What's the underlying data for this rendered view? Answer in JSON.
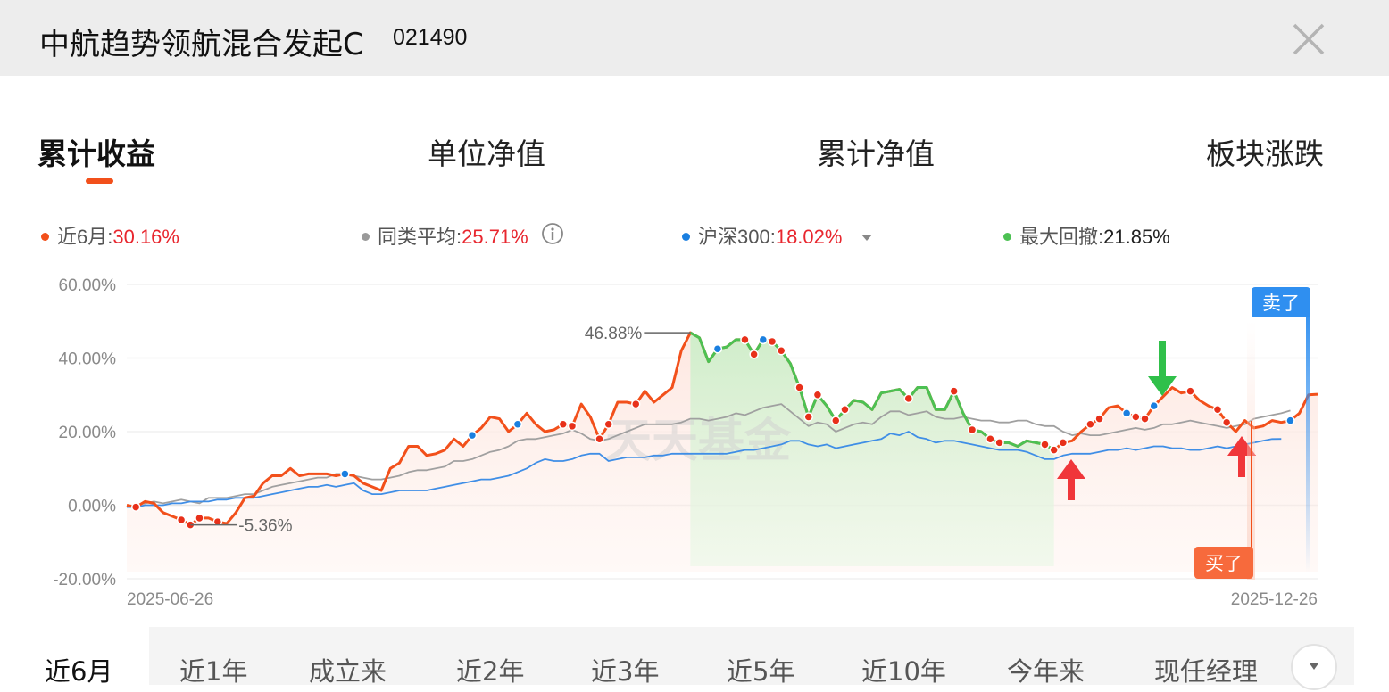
{
  "header": {
    "title": "中航趋势领航混合发起C",
    "code": "021490",
    "close_icon": "close-icon"
  },
  "tabs": [
    {
      "label": "累计收益",
      "active": true
    },
    {
      "label": "单位净值",
      "active": false
    },
    {
      "label": "累计净值",
      "active": false
    },
    {
      "label": "板块涨跌",
      "active": false
    }
  ],
  "legend": {
    "fund": {
      "label": "近6月:",
      "value": "30.16%",
      "color": "#f2501b"
    },
    "peer": {
      "label": "同类平均:",
      "value": "25.71%",
      "color": "#9a9a9a",
      "icon": "info-icon"
    },
    "index": {
      "label": "沪深300:",
      "value": "18.02%",
      "color": "#1a7fe0",
      "icon": "dropdown-caret-icon"
    },
    "drawdown": {
      "label": "最大回撤:",
      "value": "21.85%",
      "color": "#4cc153"
    }
  },
  "chart_data": {
    "type": "line",
    "ylim": [
      -20,
      60
    ],
    "yticks": [
      "60.00%",
      "40.00%",
      "20.00%",
      "0.00%",
      "-20.00%"
    ],
    "xlabel_start": "2025-06-26",
    "xlabel_end": "2025-12-26",
    "watermark": "天天基金",
    "annotations": {
      "max_label": "46.88%",
      "min_label": "-5.36%",
      "sell_label": "卖了",
      "buy_label": "买了"
    },
    "series": [
      {
        "name": "近6月",
        "color": "#f2501b",
        "values": [
          0,
          -0.5,
          1,
          0.5,
          -2,
          -3,
          -4,
          -5.36,
          -3.5,
          -3.5,
          -4.5,
          -5,
          -2,
          2,
          2.5,
          6,
          8,
          8,
          10,
          8,
          8.5,
          8.5,
          8.5,
          8,
          8.5,
          8,
          6,
          5,
          4,
          10,
          11.5,
          16,
          16,
          13.5,
          14,
          15,
          18,
          16,
          19,
          21,
          24,
          23.5,
          20,
          22,
          25,
          22,
          20,
          20.5,
          22,
          21.5,
          27.5,
          24,
          18,
          22,
          28,
          28,
          27.5,
          31,
          28,
          30,
          32,
          42,
          46.88,
          45.5,
          39,
          42.5,
          43,
          45,
          45,
          41,
          45,
          44.5,
          42,
          38.5,
          32,
          24,
          30,
          27,
          23,
          26,
          28.5,
          28,
          26,
          30.5,
          31,
          31.5,
          29,
          32,
          32,
          26,
          26,
          31,
          25,
          20.5,
          20,
          18,
          17,
          17,
          16,
          17.5,
          17,
          16.5,
          15,
          17,
          17.5,
          20,
          22,
          23.5,
          26.5,
          27,
          25,
          24,
          23.5,
          27,
          29.5,
          32,
          30.5,
          31,
          28.5,
          27,
          26,
          22.5,
          20,
          23,
          21,
          21.5,
          23,
          22.5,
          23,
          25,
          30,
          30.16
        ]
      },
      {
        "name": "同类平均",
        "color": "#a0a0a0",
        "values": [
          -0.5,
          0,
          0.5,
          1,
          0.5,
          1,
          1.5,
          1,
          0.5,
          2,
          2,
          2,
          2.5,
          3,
          3,
          4,
          5,
          5.5,
          6,
          6.5,
          7,
          7.5,
          7.5,
          8.5,
          8.5,
          8,
          7.5,
          7,
          7,
          7.5,
          8,
          9,
          9.5,
          9.5,
          10,
          10.5,
          12,
          12,
          12.5,
          13.5,
          14.5,
          15,
          16,
          17.5,
          18,
          18,
          18.5,
          19,
          19.5,
          20.5,
          19.5,
          18,
          17.5,
          18,
          19,
          20,
          21,
          22,
          22,
          22,
          22,
          22.5,
          23.5,
          23.5,
          23,
          23.5,
          24,
          25,
          24.5,
          25.5,
          26.5,
          27,
          27.5,
          25.5,
          23.5,
          21.5,
          22.5,
          22,
          20,
          21,
          22,
          22.5,
          22,
          24,
          25.5,
          25.5,
          24.5,
          25,
          25.5,
          24,
          23.5,
          23.5,
          24,
          23.5,
          23,
          23,
          22.5,
          22.5,
          23,
          23,
          22,
          21.5,
          21.5,
          20,
          19,
          19.5,
          19,
          19,
          19.5,
          20,
          20.5,
          21,
          20.5,
          21,
          22,
          22,
          22.5,
          23,
          22.5,
          22,
          21.5,
          21,
          21.5,
          22,
          23.5,
          24,
          24.5,
          25,
          25.71
        ]
      },
      {
        "name": "沪深300",
        "color": "#3f8ee6",
        "values": [
          -0.5,
          -0.5,
          0,
          0,
          0,
          0.5,
          0.5,
          1,
          1,
          1,
          1.5,
          1.5,
          2,
          2,
          2,
          2.5,
          3,
          3.5,
          4,
          4.5,
          5,
          5,
          5.5,
          5,
          5.5,
          6,
          4,
          3,
          3,
          3.5,
          4,
          4,
          4,
          4,
          4.5,
          5,
          5.5,
          6,
          6.5,
          7,
          7,
          7.5,
          8,
          9,
          10,
          11.5,
          12.5,
          12,
          12,
          12.5,
          13.5,
          14,
          14,
          12,
          12.5,
          13,
          13,
          13,
          13.5,
          13.5,
          14,
          14,
          14,
          14,
          14,
          14,
          14,
          14.5,
          15,
          15,
          15.5,
          16,
          16.5,
          17.5,
          17.5,
          16.5,
          16,
          16.5,
          15.5,
          16,
          16.5,
          17,
          17.5,
          18,
          19.5,
          19,
          20,
          18.5,
          18,
          17,
          17.5,
          17.5,
          17,
          16.5,
          16,
          15.5,
          15,
          15,
          15,
          14.5,
          13.5,
          12.5,
          12.5,
          13.5,
          14,
          14,
          14,
          14.5,
          15,
          15,
          15.5,
          15,
          15.5,
          16,
          16,
          15.5,
          15.5,
          15,
          15,
          15.5,
          16,
          15.5,
          16,
          16.5,
          17,
          17.5,
          18,
          18.02
        ]
      }
    ]
  },
  "ranges": [
    {
      "label": "近6月",
      "active": true
    },
    {
      "label": "近1年",
      "active": false
    },
    {
      "label": "成立来",
      "active": false
    },
    {
      "label": "近2年",
      "active": false
    },
    {
      "label": "近3年",
      "active": false
    },
    {
      "label": "近5年",
      "active": false
    },
    {
      "label": "近10年",
      "active": false
    },
    {
      "label": "今年来",
      "active": false
    },
    {
      "label": "现任经理",
      "active": false
    }
  ],
  "more_icon": "chevron-down-icon"
}
